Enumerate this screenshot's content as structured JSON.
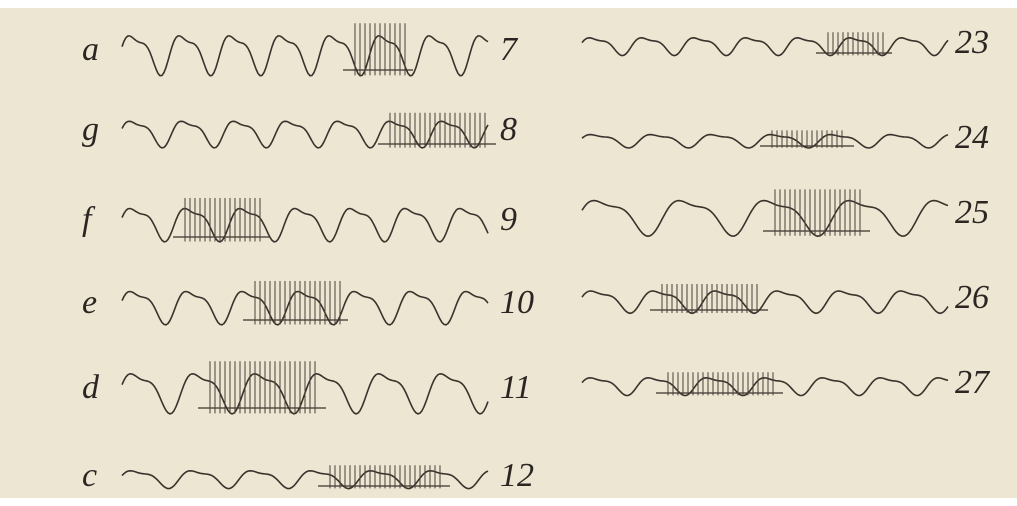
{
  "left_column": [
    {
      "label": "a",
      "number": "7"
    },
    {
      "label": "g",
      "number": "8"
    },
    {
      "label": "f",
      "number": "9"
    },
    {
      "label": "e",
      "number": "10"
    },
    {
      "label": "d",
      "number": "11"
    },
    {
      "label": "c",
      "number": "12"
    }
  ],
  "right_column": [
    {
      "number": "23"
    },
    {
      "number": "24"
    },
    {
      "number": "25"
    },
    {
      "number": "26"
    },
    {
      "number": "27"
    }
  ]
}
